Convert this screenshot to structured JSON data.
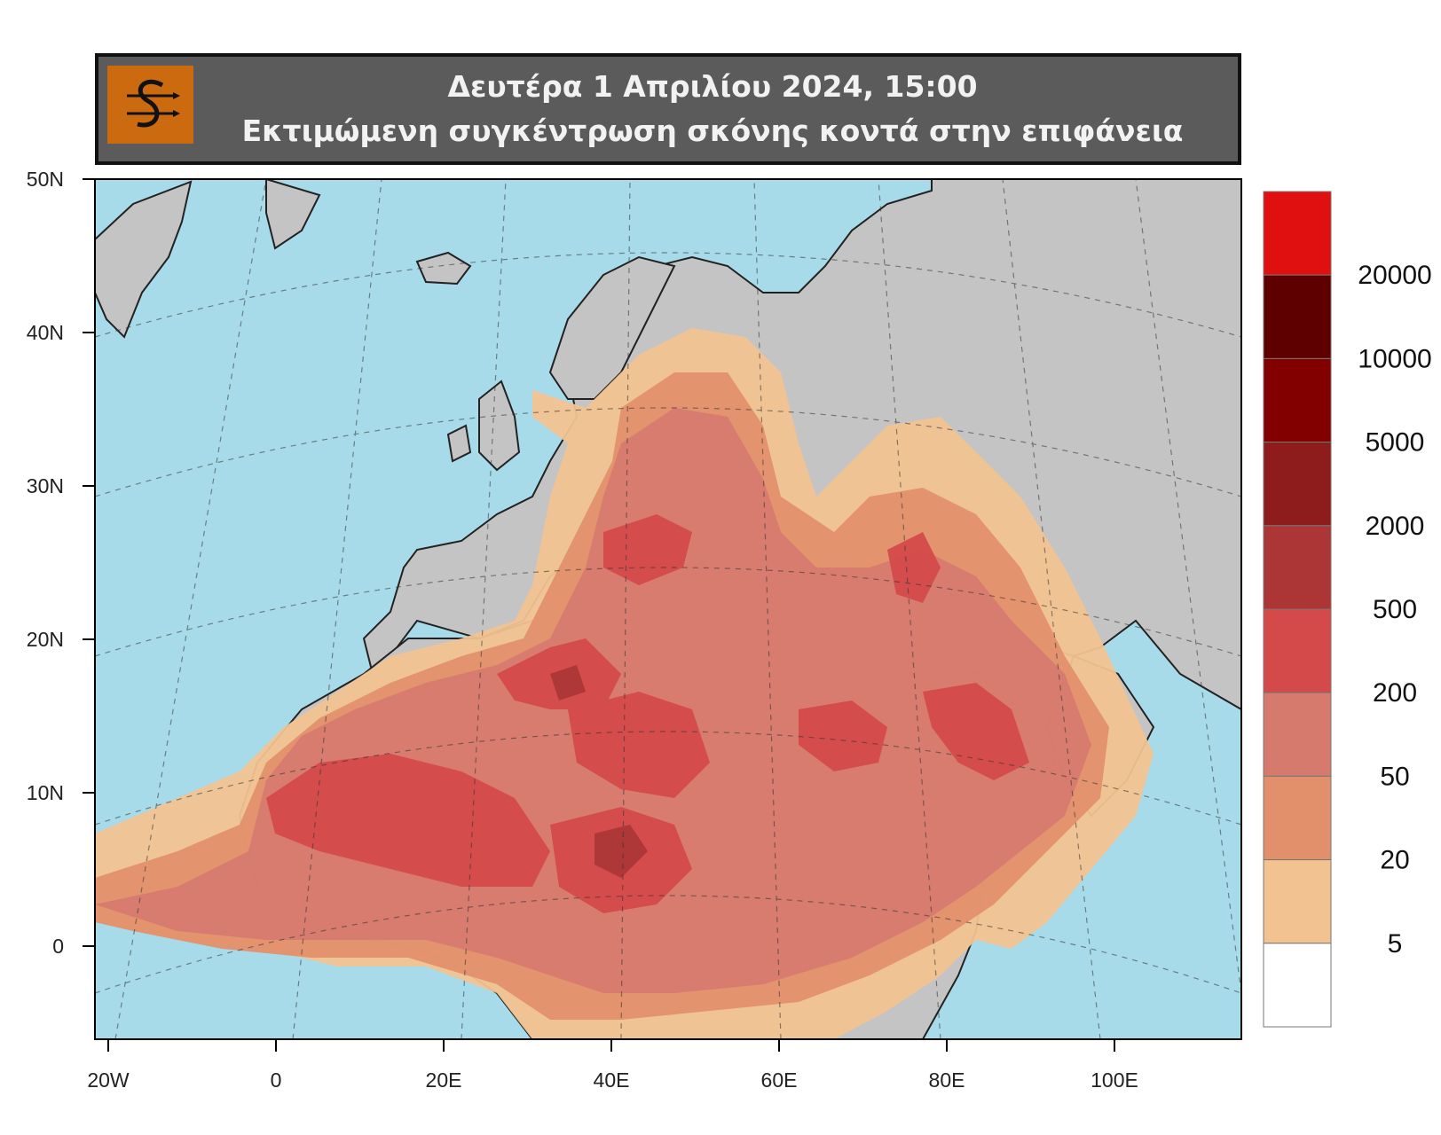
{
  "header": {
    "date_line": "Δευτέρα 1 Απριλίου 2024, 15:00",
    "subtitle": "Εκτιμώμενη συγκέντρωση σκόνης κοντά στην επιφάνεια",
    "logo_icon": "weather-swirl-logo-icon",
    "logo_color": "#cc6a10"
  },
  "map": {
    "lat_labels": [
      "50N",
      "40N",
      "30N",
      "20N",
      "10N",
      "0"
    ],
    "lon_labels": [
      "20W",
      "0",
      "20E",
      "40E",
      "60E",
      "80E",
      "100E"
    ],
    "colors": {
      "ocean": "#a8dbe9",
      "land": "#c4c4c4"
    }
  },
  "legend": {
    "thresholds": [
      "20000",
      "10000",
      "5000",
      "2000",
      "500",
      "200",
      "50",
      "20",
      "5"
    ],
    "colors": [
      "#e01010",
      "#5e0000",
      "#820000",
      "#8e1c1c",
      "#ac3636",
      "#d44a4a",
      "#d67a6e",
      "#e2906c",
      "#f2c391",
      "#ffffff"
    ]
  }
}
